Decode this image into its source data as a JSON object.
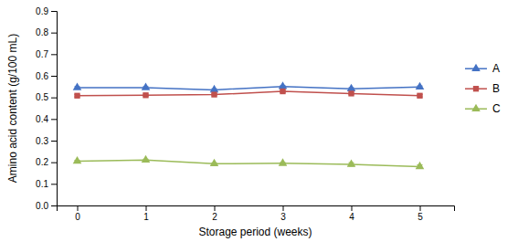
{
  "chart_data": {
    "type": "line",
    "xlabel": "Storage period (weeks)",
    "ylabel": "Amino acid content (g/100 mL)",
    "x": [
      0,
      1,
      2,
      3,
      4,
      5
    ],
    "xlim": [
      -0.3,
      5.5
    ],
    "xticks": [
      0,
      1,
      2,
      3,
      4,
      5
    ],
    "ylim": [
      0,
      0.9
    ],
    "yticks": [
      {
        "value": 0,
        "label": "0.0"
      },
      0.1,
      0.2,
      0.3,
      0.4,
      0.5,
      0.6,
      0.7,
      0.8,
      0.9
    ],
    "grid": false,
    "legend": "right",
    "series": [
      {
        "name": "A",
        "color": "#4472C4",
        "marker": "triangle",
        "values": [
          0.545,
          0.545,
          0.535,
          0.55,
          0.54,
          0.548
        ],
        "errors": [
          0.005,
          0.005,
          0.005,
          0.005,
          0.005,
          0.005
        ]
      },
      {
        "name": "B",
        "color": "#C0504D",
        "marker": "square",
        "values": [
          0.508,
          0.51,
          0.513,
          0.528,
          0.518,
          0.508
        ],
        "errors": [
          0.005,
          0.005,
          0.005,
          0.006,
          0.005,
          0.005
        ]
      },
      {
        "name": "C",
        "color": "#9BBB59",
        "marker": "triangle",
        "values": [
          0.205,
          0.21,
          0.193,
          0.195,
          0.19,
          0.18
        ],
        "errors": [
          0.004,
          0.004,
          0.004,
          0.004,
          0.008,
          0.008
        ]
      }
    ]
  }
}
